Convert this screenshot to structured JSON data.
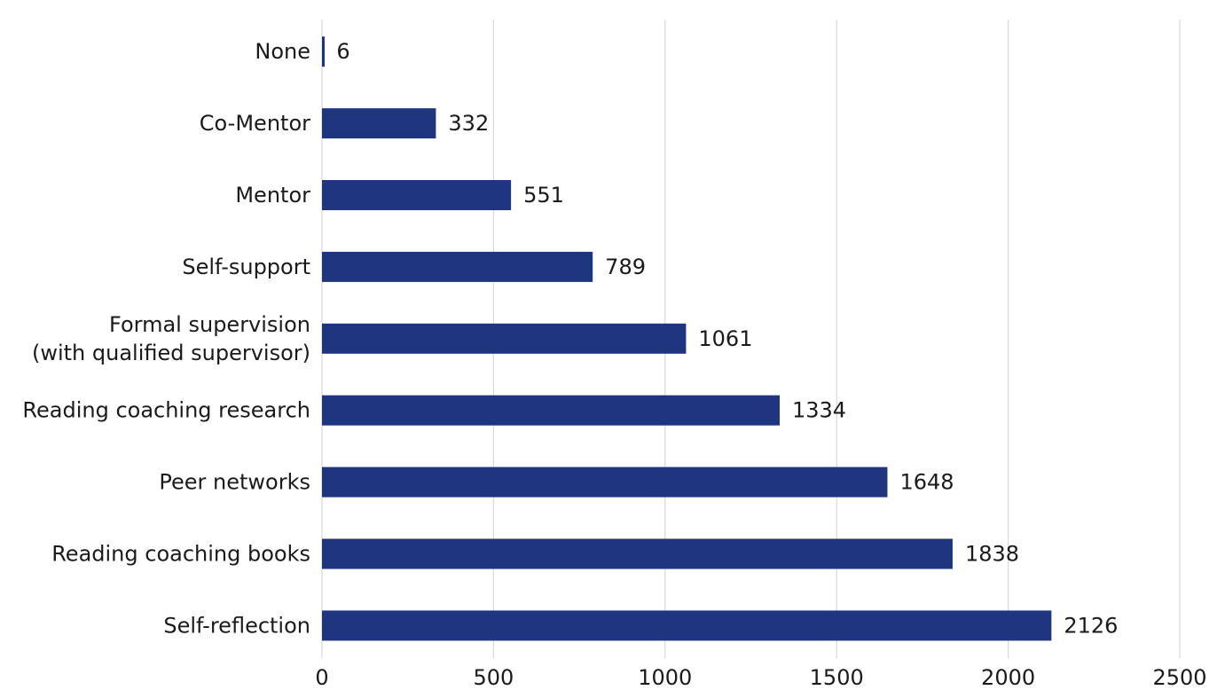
{
  "colors": {
    "bar": "#1f3580"
  },
  "chart_data": {
    "type": "bar",
    "orientation": "horizontal",
    "categories": [
      [
        "None"
      ],
      [
        "Co-Mentor"
      ],
      [
        "Mentor"
      ],
      [
        "Self-support"
      ],
      [
        "Formal supervision",
        "(with qualified supervisor)"
      ],
      [
        "Reading coaching research"
      ],
      [
        "Peer networks"
      ],
      [
        "Reading coaching books"
      ],
      [
        "Self-reflection"
      ]
    ],
    "values": [
      6,
      332,
      551,
      789,
      1061,
      1334,
      1648,
      1838,
      2126
    ],
    "data_labels": [
      "6",
      "332",
      "551",
      "789",
      "1061",
      "1334",
      "1648",
      "1838",
      "2126"
    ],
    "x_ticks": [
      0,
      500,
      1000,
      1500,
      2000,
      2500
    ],
    "xlim": [
      0,
      2500
    ],
    "title": "",
    "xlabel": "",
    "ylabel": "",
    "grid": "vertical",
    "legend": "none"
  }
}
